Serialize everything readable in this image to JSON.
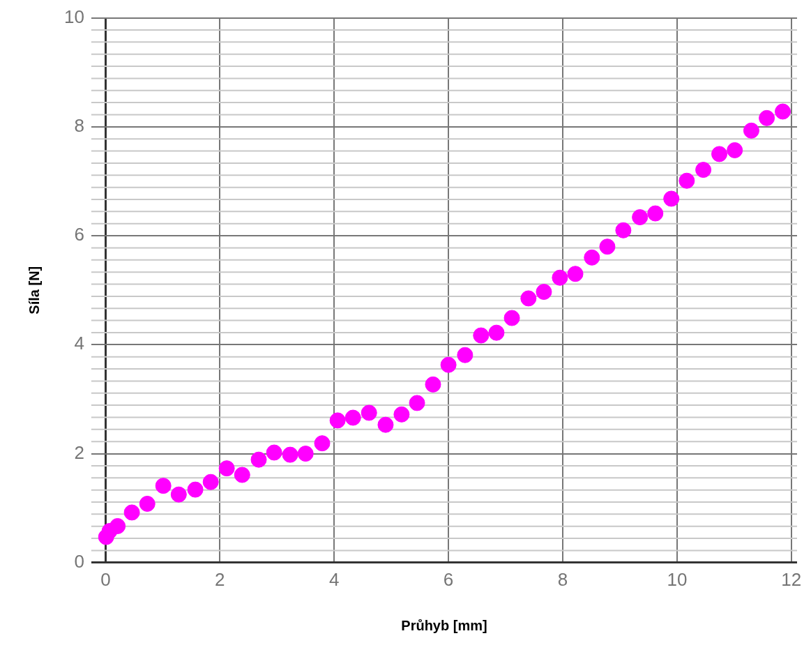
{
  "chart_data": {
    "type": "scatter",
    "xlabel": "Průhyb [mm]",
    "ylabel": "Síla [N]",
    "xlim": [
      -0.25,
      12.1
    ],
    "ylim": [
      0,
      10
    ],
    "xticks": [
      0,
      2,
      4,
      6,
      8,
      10,
      12
    ],
    "yticks": [
      0,
      2,
      4,
      6,
      8,
      10
    ],
    "grid": true,
    "legend": false,
    "marker": "circle",
    "series": [
      {
        "color": "#ff00ff",
        "x": [
          0.01,
          0.07,
          0.21,
          0.46,
          0.73,
          1.01,
          1.28,
          1.57,
          1.84,
          2.12,
          2.39,
          2.68,
          2.95,
          3.23,
          3.5,
          3.79,
          4.06,
          4.33,
          4.61,
          4.9,
          5.18,
          5.45,
          5.73,
          6.0,
          6.29,
          6.57,
          6.84,
          7.11,
          7.4,
          7.67,
          7.95,
          8.22,
          8.51,
          8.78,
          9.06,
          9.35,
          9.62,
          9.9,
          10.17,
          10.46,
          10.74,
          11.01,
          11.3,
          11.57,
          11.85
        ],
        "values": [
          0.47,
          0.58,
          0.67,
          0.92,
          1.08,
          1.41,
          1.25,
          1.34,
          1.48,
          1.73,
          1.61,
          1.89,
          2.02,
          1.98,
          2.0,
          2.19,
          2.61,
          2.66,
          2.75,
          2.53,
          2.72,
          2.93,
          3.27,
          3.63,
          3.81,
          4.17,
          4.22,
          4.49,
          4.85,
          4.97,
          5.23,
          5.3,
          5.6,
          5.8,
          6.1,
          6.34,
          6.41,
          6.68,
          7.01,
          7.21,
          7.5,
          7.57,
          7.93,
          8.16,
          8.28
        ]
      }
    ]
  }
}
